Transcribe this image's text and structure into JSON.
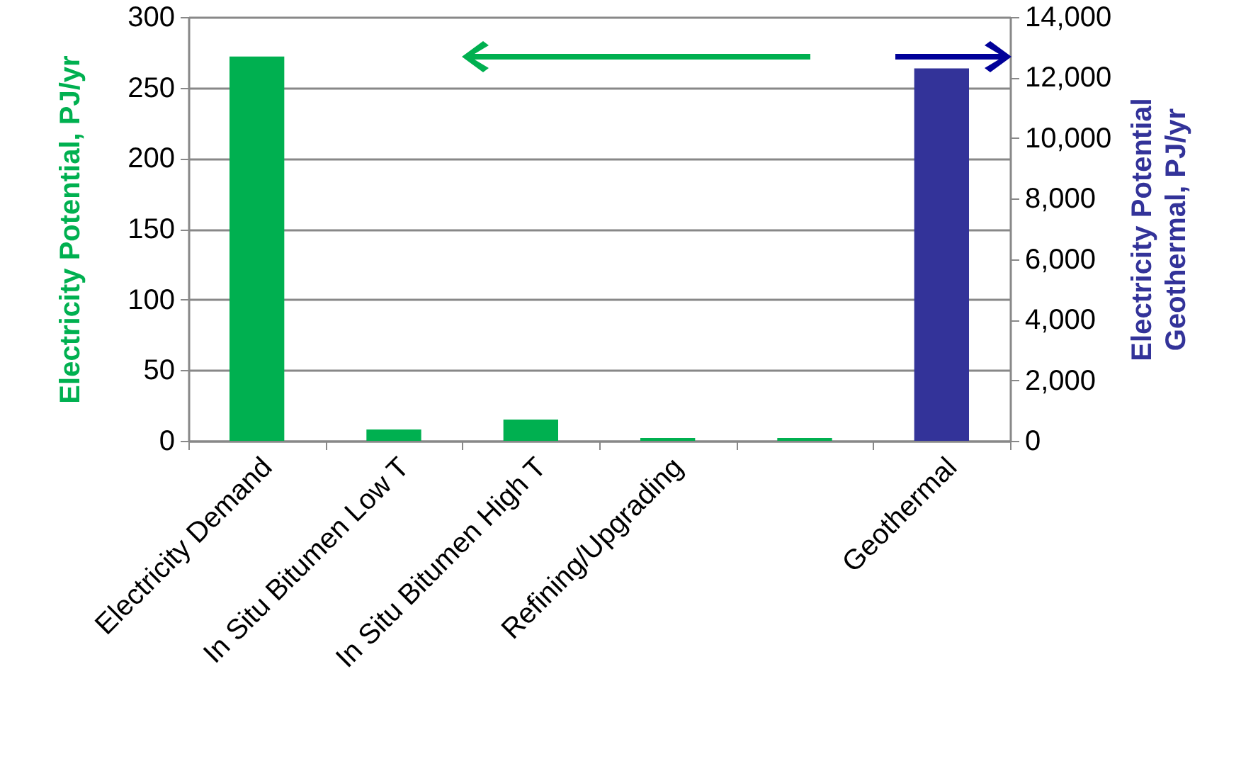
{
  "chart_data": {
    "type": "bar",
    "ylabel": "Electricity Potential, PJ/yr",
    "y2label": "Electricity  Potential\nGeothermal, PJ/yr",
    "categories": [
      "Electricity Demand",
      "In Situ Bitumen Low T",
      "In Situ Bitumen High T",
      "Refining/Upgrading",
      null,
      "Geothermal"
    ],
    "series": [
      {
        "color": "#00b050",
        "values": [
          272,
          8,
          15,
          2,
          2,
          null
        ]
      },
      {
        "color": "#333399",
        "axis": "y2",
        "values": [
          null,
          null,
          null,
          null,
          null,
          12300
        ]
      }
    ],
    "ylim": [
      0,
      300
    ],
    "yticks": [
      0,
      50,
      100,
      150,
      200,
      250,
      300
    ],
    "y2lim": [
      0,
      14000
    ],
    "y2ticks": [
      0,
      {
        "value": 2000,
        "label": "2,000"
      },
      {
        "value": 4000,
        "label": "4,000"
      },
      {
        "value": 6000,
        "label": "6,000"
      },
      {
        "value": 8000,
        "label": "8,000"
      },
      {
        "value": 10000,
        "label": "10,000"
      },
      {
        "value": 12000,
        "label": "12,000"
      },
      {
        "value": 14000,
        "label": "14,000"
      }
    ],
    "grid": "y"
  }
}
